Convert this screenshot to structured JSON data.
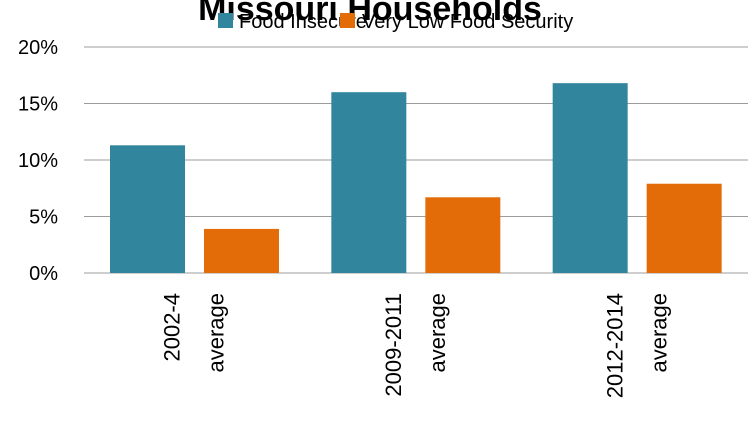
{
  "chart_data": {
    "type": "bar",
    "title": "Missouri Households",
    "categories": [
      "2002-4 average",
      "2009-2011 average",
      "2012-2014 average"
    ],
    "category_lines": [
      [
        "2002-4",
        "average"
      ],
      [
        "2009-2011",
        "average"
      ],
      [
        "2012-2014",
        "average"
      ]
    ],
    "series": [
      {
        "name": "Food Insecure",
        "color": "#31859C",
        "values": [
          11.3,
          16.0,
          16.8
        ]
      },
      {
        "name": "Very Low Food Security",
        "color": "#E36C09",
        "values": [
          3.9,
          6.7,
          7.9
        ]
      }
    ],
    "y_ticks": [
      0,
      5,
      10,
      15,
      20
    ],
    "y_tick_labels": [
      "0%",
      "5%",
      "10%",
      "15%",
      "20%"
    ],
    "ylim": [
      0,
      20
    ],
    "xlabel": "",
    "ylabel": "",
    "grid": true,
    "legend_position": "top",
    "gridline_color": "#9C9C9C"
  }
}
